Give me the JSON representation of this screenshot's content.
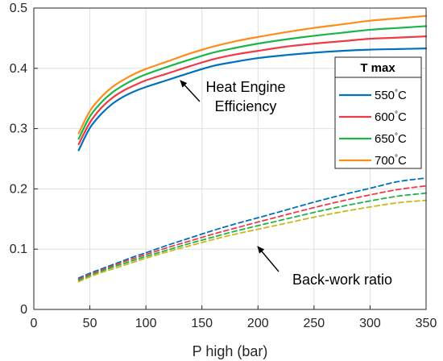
{
  "chart_data": {
    "type": "line",
    "xlabel": "P high (bar)",
    "ylabel": "",
    "xlim": [
      0,
      350
    ],
    "ylim": [
      0,
      0.5
    ],
    "xticks": [
      0,
      50,
      100,
      150,
      200,
      250,
      300,
      350
    ],
    "yticks": [
      0,
      0.1,
      0.2,
      0.3,
      0.4,
      0.5
    ],
    "grid": true,
    "legend": {
      "title": "T max",
      "placement": "right",
      "entries": [
        {
          "value": "550",
          "unit": "°C",
          "color": "#0072BD"
        },
        {
          "value": "600",
          "unit": "°C",
          "color": "#EF3A47"
        },
        {
          "value": "650",
          "unit": "°C",
          "color": "#1BB54A"
        },
        {
          "value": "700",
          "unit": "°C",
          "color": "#FF8C1A"
        }
      ]
    },
    "x": [
      40,
      50,
      60,
      70,
      80,
      90,
      100,
      120,
      140,
      160,
      180,
      200,
      225,
      250,
      275,
      300,
      325,
      350
    ],
    "series": [
      {
        "name": "550°C",
        "group": "efficiency",
        "style": "solid",
        "color": "#0072BD",
        "values": [
          0.264,
          0.301,
          0.324,
          0.341,
          0.353,
          0.362,
          0.369,
          0.381,
          0.393,
          0.404,
          0.411,
          0.417,
          0.422,
          0.426,
          0.429,
          0.431,
          0.432,
          0.433
        ]
      },
      {
        "name": "600°C",
        "group": "efficiency",
        "style": "solid",
        "color": "#EF3A47",
        "values": [
          0.274,
          0.31,
          0.334,
          0.351,
          0.363,
          0.372,
          0.38,
          0.392,
          0.404,
          0.415,
          0.423,
          0.429,
          0.436,
          0.441,
          0.445,
          0.449,
          0.451,
          0.453
        ]
      },
      {
        "name": "650°C",
        "group": "efficiency",
        "style": "solid",
        "color": "#1BB54A",
        "values": [
          0.283,
          0.32,
          0.343,
          0.36,
          0.372,
          0.382,
          0.39,
          0.403,
          0.415,
          0.426,
          0.434,
          0.441,
          0.448,
          0.454,
          0.459,
          0.464,
          0.467,
          0.47
        ]
      },
      {
        "name": "700°C",
        "group": "efficiency",
        "style": "solid",
        "color": "#FF8C1A",
        "values": [
          0.292,
          0.329,
          0.352,
          0.369,
          0.381,
          0.391,
          0.399,
          0.412,
          0.425,
          0.436,
          0.445,
          0.452,
          0.46,
          0.467,
          0.473,
          0.479,
          0.483,
          0.487
        ]
      },
      {
        "name": "550°C",
        "group": "back-work",
        "style": "dashed",
        "color": "#0072BD",
        "values": [
          0.052,
          0.06,
          0.067,
          0.074,
          0.081,
          0.088,
          0.094,
          0.107,
          0.119,
          0.131,
          0.142,
          0.152,
          0.165,
          0.178,
          0.19,
          0.201,
          0.212,
          0.218
        ]
      },
      {
        "name": "600°C",
        "group": "back-work",
        "style": "dashed",
        "color": "#EF3A47",
        "values": [
          0.05,
          0.058,
          0.065,
          0.072,
          0.079,
          0.085,
          0.091,
          0.103,
          0.114,
          0.125,
          0.135,
          0.145,
          0.157,
          0.169,
          0.18,
          0.19,
          0.199,
          0.205
        ]
      },
      {
        "name": "650°C",
        "group": "back-work",
        "style": "dashed",
        "color": "#1BB54A",
        "values": [
          0.048,
          0.056,
          0.063,
          0.07,
          0.076,
          0.082,
          0.088,
          0.099,
          0.11,
          0.12,
          0.13,
          0.139,
          0.15,
          0.161,
          0.171,
          0.18,
          0.188,
          0.193
        ]
      },
      {
        "name": "700°C",
        "group": "back-work",
        "style": "dashed",
        "color": "#C9B81A",
        "values": [
          0.046,
          0.054,
          0.061,
          0.067,
          0.073,
          0.079,
          0.085,
          0.096,
          0.106,
          0.116,
          0.125,
          0.133,
          0.143,
          0.153,
          0.162,
          0.17,
          0.177,
          0.181
        ]
      }
    ],
    "annotations": [
      {
        "line1": "Heat Engine",
        "line2": "Efficiency",
        "arrow_to": [
          118,
          0.388
        ]
      },
      {
        "line1": "Back-work ratio",
        "line2": "",
        "arrow_to": [
          198,
          0.112
        ]
      }
    ]
  }
}
